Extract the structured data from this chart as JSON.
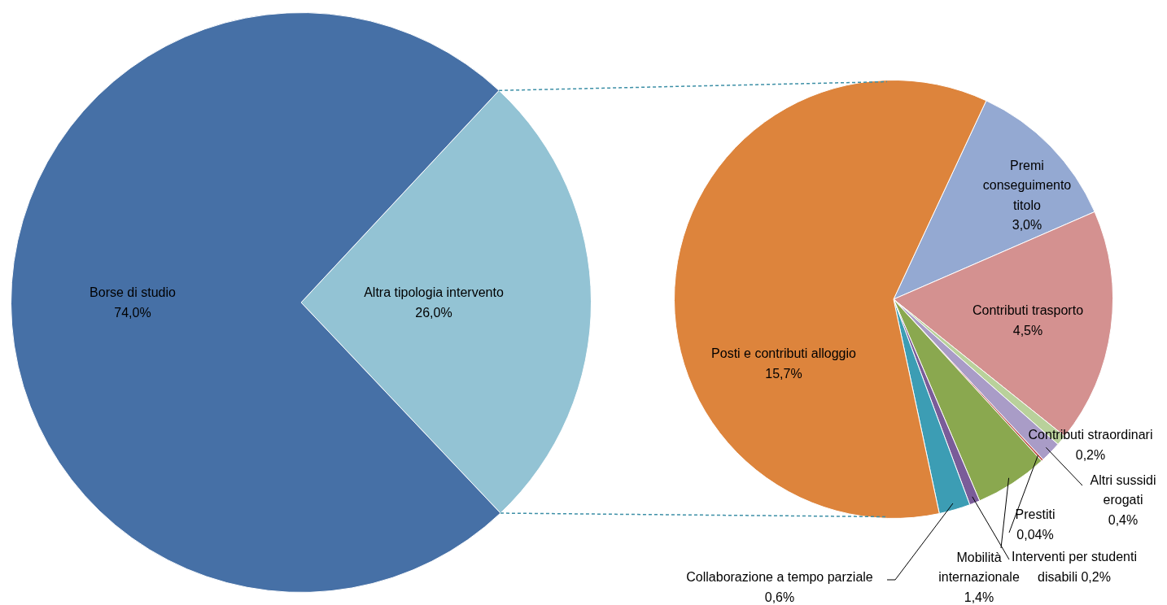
{
  "chart_data": [
    {
      "type": "pie",
      "categories": [
        "Altra tipologia intervento",
        "Borse di studio"
      ],
      "values": [
        26.0,
        74.0
      ],
      "colors": [
        "#93c3d4",
        "#4670a6"
      ],
      "value_labels": [
        "26,0%",
        "74,0%"
      ]
    },
    {
      "type": "pie",
      "categories": [
        "Premi conseguimento titolo",
        "Contributi trasporto",
        "Contributi straordinari",
        "Altri sussidi erogati",
        "Prestiti",
        "Mobilità internazionale",
        "Interventi per studenti disabili",
        "Collaborazione a tempo parziale",
        "Posti e contributi alloggio"
      ],
      "values": [
        3.0,
        4.5,
        0.2,
        0.4,
        0.04,
        1.4,
        0.2,
        0.6,
        15.7
      ],
      "colors": [
        "#94a9d2",
        "#d49190",
        "#b9d19b",
        "#a99cc7",
        "#c0504d",
        "#8aa84f",
        "#7a5c99",
        "#3c9db4",
        "#dd843c"
      ],
      "value_labels": [
        "3,0%",
        "4,5%",
        "0,2%",
        "0,4%",
        "0,04%",
        "1,4%",
        "0,2%",
        "0,6%",
        "15,7%"
      ]
    }
  ]
}
